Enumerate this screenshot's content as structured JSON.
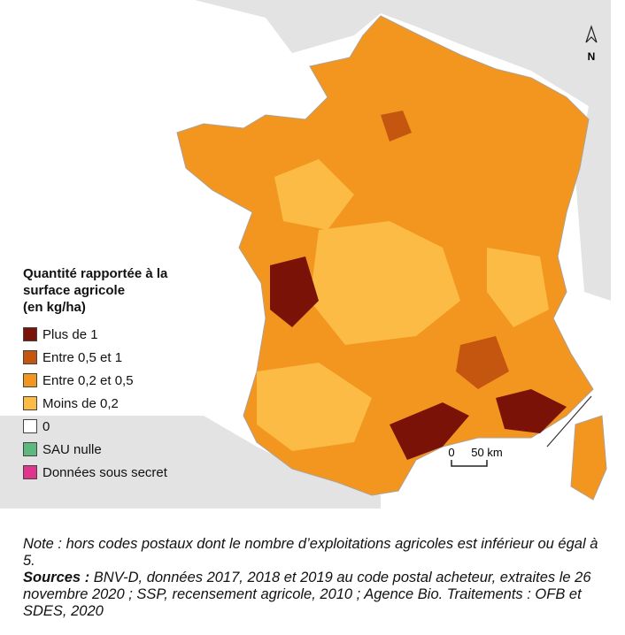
{
  "legend": {
    "title": [
      "Quantité rapportée à la",
      "surface agricole",
      "(en kg/ha)"
    ],
    "items": [
      {
        "label": "Plus de 1",
        "color": "#7a1208"
      },
      {
        "label": "Entre 0,5 et 1",
        "color": "#c4560f"
      },
      {
        "label": "Entre 0,2 et 0,5",
        "color": "#f2961f"
      },
      {
        "label": "Moins de 0,2",
        "color": "#fbbb44"
      },
      {
        "label": "0",
        "color": "#ffffff"
      },
      {
        "label": "SAU nulle",
        "color": "#5cb87c"
      },
      {
        "label": "Données sous secret",
        "color": "#e0358f"
      }
    ]
  },
  "scale": {
    "start": "0",
    "end": "50 km"
  },
  "north": "N",
  "note": "Note : hors codes postaux dont le nombre d’exploitations agricoles est inférieur ou égal à 5.",
  "sources": {
    "label": "Sources :",
    "text": "BNV-D, données 2017, 2018 et 2019 au code postal acheteur, extraites le 26 novembre 2020 ; SSP, recensement agricole, 2010 ; Agence Bio. Traitements : OFB et SDES, 2020"
  }
}
